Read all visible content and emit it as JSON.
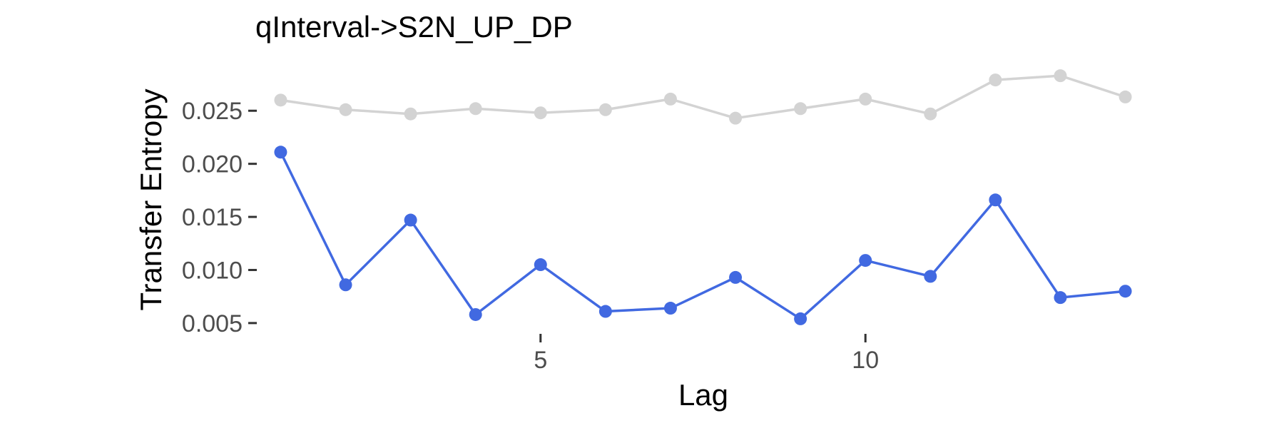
{
  "chart_data": {
    "type": "line",
    "title": "qInterval->S2N_UP_DP",
    "xlabel": "Lag",
    "ylabel": "Transfer Entropy",
    "xlim": [
      0.6,
      14.4
    ],
    "ylim": [
      0.00385,
      0.02925
    ],
    "x_ticks": [
      5,
      10
    ],
    "y_ticks": [
      0.005,
      0.01,
      0.015,
      0.02,
      0.025
    ],
    "y_tick_labels": [
      "0.005",
      "0.010",
      "0.015",
      "0.020",
      "0.025"
    ],
    "grid": false,
    "legend": "none",
    "x": [
      1,
      2,
      3,
      4,
      5,
      6,
      7,
      8,
      9,
      10,
      11,
      12,
      13,
      14
    ],
    "series": [
      {
        "color": "#d3d3d3",
        "values": [
          0.026,
          0.0251,
          0.0247,
          0.0252,
          0.0248,
          0.0251,
          0.0261,
          0.0243,
          0.0252,
          0.0261,
          0.0247,
          0.0279,
          0.0283,
          0.0263
        ]
      },
      {
        "color": "#4169e1",
        "values": [
          0.0211,
          0.0086,
          0.0147,
          0.0058,
          0.0105,
          0.0061,
          0.0064,
          0.0093,
          0.0054,
          0.0109,
          0.0094,
          0.0166,
          0.0074,
          0.008
        ]
      }
    ]
  }
}
